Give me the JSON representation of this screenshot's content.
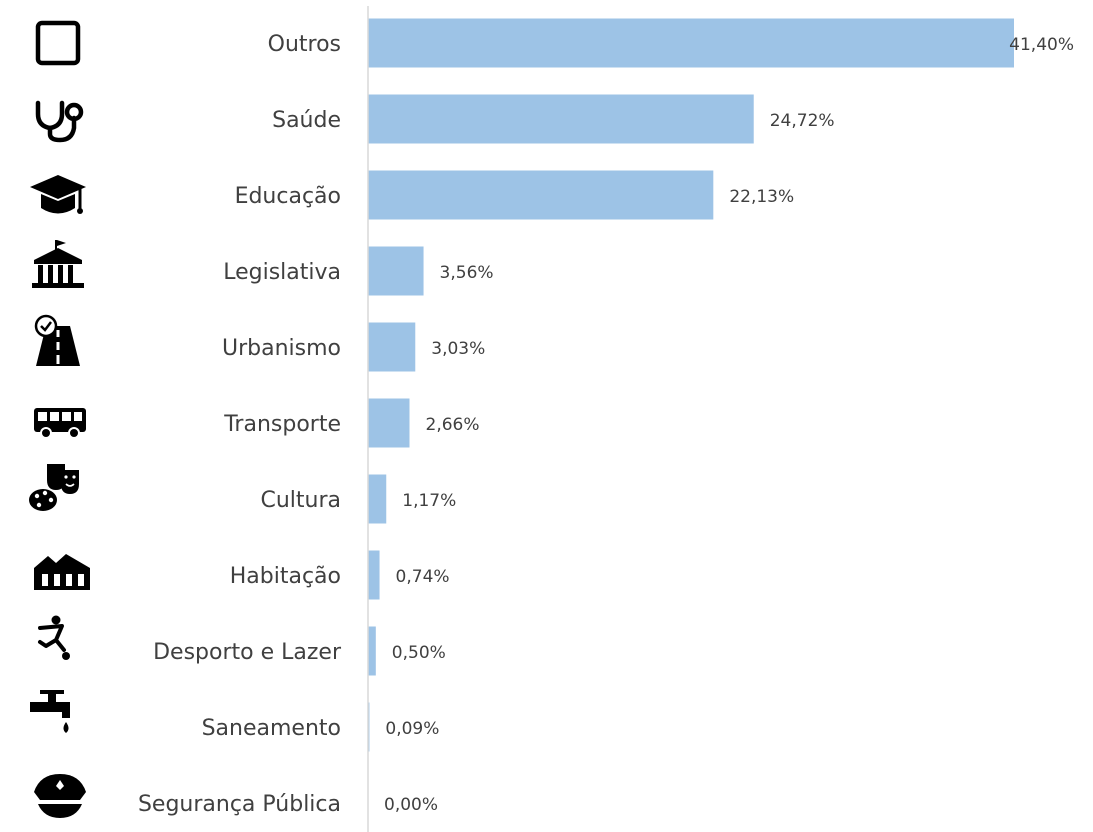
{
  "chart_data": {
    "type": "bar",
    "orientation": "horizontal",
    "categories": [
      "Outros",
      "Saúde",
      "Educação",
      "Legislativa",
      "Urbanismo",
      "Transporte",
      "Cultura",
      "Habitação",
      "Desporto e Lazer",
      "Saneamento",
      "Segurança Pública"
    ],
    "values": [
      41.4,
      24.72,
      22.13,
      3.56,
      3.03,
      2.66,
      1.17,
      0.74,
      0.5,
      0.09,
      0.0
    ],
    "value_labels": [
      "41,40%",
      "24,72%",
      "22,13%",
      "3,56%",
      "3,03%",
      "2,66%",
      "1,17%",
      "0,74%",
      "0,50%",
      "0,09%",
      "0,00%"
    ],
    "icons": [
      "square-icon",
      "stethoscope-icon",
      "graduation-cap-icon",
      "government-building-icon",
      "road-icon",
      "bus-icon",
      "theater-masks-palette-icon",
      "houses-icon",
      "soccer-player-icon",
      "faucet-icon",
      "police-cap-icon"
    ],
    "xlim": [
      0,
      41.4
    ],
    "grid": false,
    "bar_color": "#9dc3e6",
    "axis_color": "#d9d9d9",
    "text_color": "#404040"
  }
}
